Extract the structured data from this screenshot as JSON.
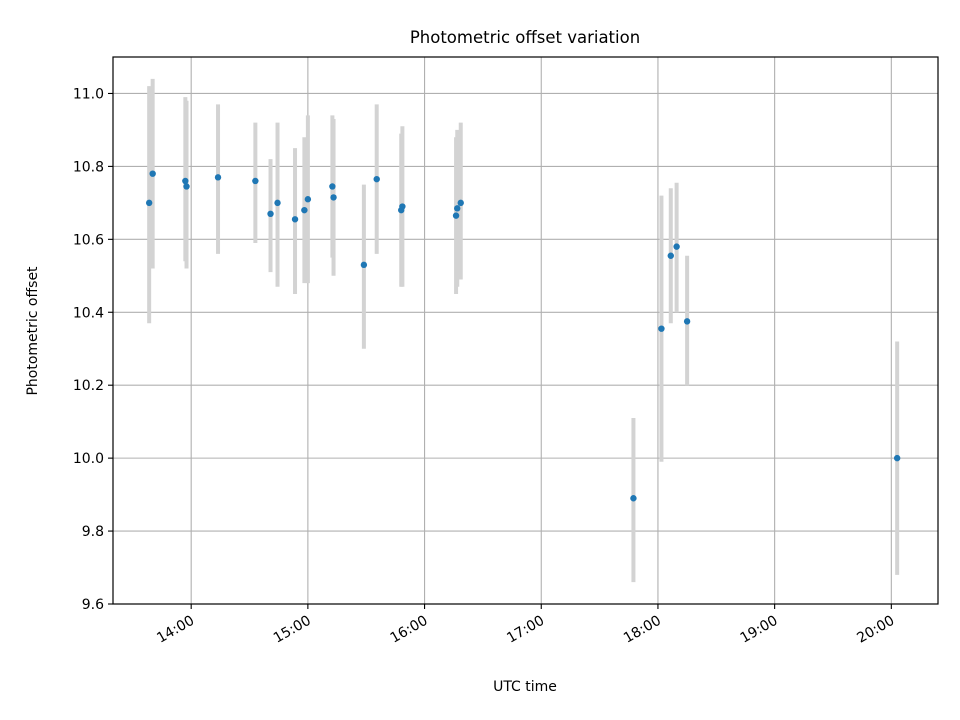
{
  "chart_data": {
    "type": "scatter",
    "title": "Photometric offset variation",
    "xlabel": "UTC time",
    "ylabel": "Photometric offset",
    "x_unit": "hours UTC",
    "xlim": [
      13.33,
      20.4
    ],
    "ylim": [
      9.6,
      11.1
    ],
    "xticks": [
      {
        "value": 14,
        "label": "14:00"
      },
      {
        "value": 15,
        "label": "15:00"
      },
      {
        "value": 16,
        "label": "16:00"
      },
      {
        "value": 17,
        "label": "17:00"
      },
      {
        "value": 18,
        "label": "18:00"
      },
      {
        "value": 19,
        "label": "19:00"
      },
      {
        "value": 20,
        "label": "20:00"
      }
    ],
    "yticks": [
      {
        "value": 9.6,
        "label": "9.6"
      },
      {
        "value": 9.8,
        "label": "9.8"
      },
      {
        "value": 10.0,
        "label": "10.0"
      },
      {
        "value": 10.2,
        "label": "10.2"
      },
      {
        "value": 10.4,
        "label": "10.4"
      },
      {
        "value": 10.6,
        "label": "10.6"
      },
      {
        "value": 10.8,
        "label": "10.8"
      },
      {
        "value": 11.0,
        "label": "11.0"
      }
    ],
    "grid": true,
    "point_color": "#1f77b4",
    "errorbar_color": "#d3d3d3",
    "points": [
      {
        "x": 13.64,
        "y": 10.7,
        "ylow": 10.37,
        "yhigh": 11.02
      },
      {
        "x": 13.67,
        "y": 10.78,
        "ylow": 10.52,
        "yhigh": 11.04
      },
      {
        "x": 13.95,
        "y": 10.76,
        "ylow": 10.54,
        "yhigh": 10.99
      },
      {
        "x": 13.96,
        "y": 10.745,
        "ylow": 10.52,
        "yhigh": 10.98
      },
      {
        "x": 14.23,
        "y": 10.77,
        "ylow": 10.56,
        "yhigh": 10.97
      },
      {
        "x": 14.55,
        "y": 10.76,
        "ylow": 10.59,
        "yhigh": 10.92
      },
      {
        "x": 14.68,
        "y": 10.67,
        "ylow": 10.51,
        "yhigh": 10.82
      },
      {
        "x": 14.74,
        "y": 10.7,
        "ylow": 10.47,
        "yhigh": 10.92
      },
      {
        "x": 14.89,
        "y": 10.655,
        "ylow": 10.45,
        "yhigh": 10.85
      },
      {
        "x": 14.97,
        "y": 10.68,
        "ylow": 10.48,
        "yhigh": 10.88
      },
      {
        "x": 15.0,
        "y": 10.71,
        "ylow": 10.48,
        "yhigh": 10.94
      },
      {
        "x": 15.21,
        "y": 10.745,
        "ylow": 10.55,
        "yhigh": 10.94
      },
      {
        "x": 15.22,
        "y": 10.715,
        "ylow": 10.5,
        "yhigh": 10.93
      },
      {
        "x": 15.48,
        "y": 10.53,
        "ylow": 10.3,
        "yhigh": 10.75
      },
      {
        "x": 15.59,
        "y": 10.765,
        "ylow": 10.56,
        "yhigh": 10.97
      },
      {
        "x": 15.8,
        "y": 10.68,
        "ylow": 10.47,
        "yhigh": 10.89
      },
      {
        "x": 15.81,
        "y": 10.69,
        "ylow": 10.47,
        "yhigh": 10.91
      },
      {
        "x": 16.27,
        "y": 10.665,
        "ylow": 10.45,
        "yhigh": 10.88
      },
      {
        "x": 16.28,
        "y": 10.685,
        "ylow": 10.47,
        "yhigh": 10.9
      },
      {
        "x": 16.31,
        "y": 10.7,
        "ylow": 10.49,
        "yhigh": 10.92
      },
      {
        "x": 17.79,
        "y": 9.89,
        "ylow": 9.66,
        "yhigh": 10.11
      },
      {
        "x": 18.03,
        "y": 10.355,
        "ylow": 9.99,
        "yhigh": 10.72
      },
      {
        "x": 18.11,
        "y": 10.555,
        "ylow": 10.37,
        "yhigh": 10.74
      },
      {
        "x": 18.16,
        "y": 10.58,
        "ylow": 10.4,
        "yhigh": 10.755
      },
      {
        "x": 18.25,
        "y": 10.375,
        "ylow": 10.2,
        "yhigh": 10.555
      },
      {
        "x": 20.05,
        "y": 10.0,
        "ylow": 9.68,
        "yhigh": 10.32
      }
    ]
  }
}
